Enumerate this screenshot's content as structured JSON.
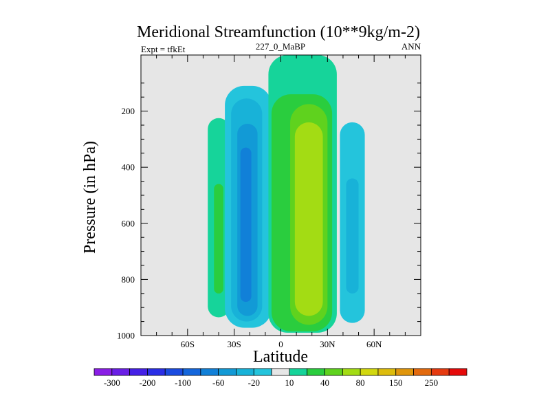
{
  "chart_data": {
    "type": "heatmap",
    "title": "Meridional Streamfunction (10**9kg/m-2)",
    "subtitle_left": "Expt = tfkEt",
    "subtitle_center": "227_0_MaBP",
    "subtitle_right": "ANN",
    "xlabel": "Latitude",
    "ylabel": "Pressure (in hPa)",
    "xlim": [
      -90,
      90
    ],
    "ylim": [
      0,
      1000
    ],
    "y_reversed": true,
    "x_ticks": [
      {
        "value": -60,
        "label": "60S"
      },
      {
        "value": -30,
        "label": "30S"
      },
      {
        "value": 0,
        "label": "0"
      },
      {
        "value": 30,
        "label": "30N"
      },
      {
        "value": 60,
        "label": "60N"
      }
    ],
    "y_ticks": [
      {
        "value": 200,
        "label": "200"
      },
      {
        "value": 400,
        "label": "400"
      },
      {
        "value": 600,
        "label": "600"
      },
      {
        "value": 800,
        "label": "800"
      },
      {
        "value": 1000,
        "label": "1000"
      }
    ],
    "background_color": "#e6e6e6",
    "colorbar": {
      "levels": [
        -300,
        -250,
        -200,
        -150,
        -100,
        -80,
        -60,
        -40,
        -20,
        -10,
        10,
        20,
        40,
        60,
        80,
        100,
        150,
        200,
        250,
        300
      ],
      "colors": [
        "#8a1ee6",
        "#6a1fe6",
        "#4520e6",
        "#2a2ee6",
        "#1a4be0",
        "#1466dc",
        "#1180d8",
        "#129ad6",
        "#18b2d8",
        "#24c4dc",
        "#e6e6e6",
        "#16d49a",
        "#2acd3e",
        "#5fd21e",
        "#a3dc14",
        "#d2d80f",
        "#ddbc0c",
        "#e0960c",
        "#e36a0e",
        "#e63a10",
        "#e60a0a"
      ],
      "labels": [
        {
          "level": -300,
          "text": "-300"
        },
        {
          "level": -200,
          "text": "-200"
        },
        {
          "level": -100,
          "text": "-100"
        },
        {
          "level": -60,
          "text": "-60"
        },
        {
          "level": -20,
          "text": "-20"
        },
        {
          "level": 10,
          "text": "10"
        },
        {
          "level": 40,
          "text": "40"
        },
        {
          "level": 80,
          "text": "80"
        },
        {
          "level": 150,
          "text": "150"
        },
        {
          "level": 250,
          "text": "250"
        }
      ]
    },
    "cells": [
      {
        "name": "cell-45s-positive",
        "center_lat": -40,
        "bands": [
          {
            "bin": 11,
            "lat": [
              -47,
              -33
            ],
            "p": [
              225,
              935
            ]
          },
          {
            "bin": 12,
            "lat": [
              -43,
              -37
            ],
            "p": [
              460,
              850
            ]
          }
        ]
      },
      {
        "name": "cell-20s-negative",
        "center_lat": -21,
        "bands": [
          {
            "bin": 9,
            "lat": [
              -36,
              -6
            ],
            "p": [
              110,
              972
            ]
          },
          {
            "bin": 8,
            "lat": [
              -32,
              -12
            ],
            "p": [
              155,
              950
            ]
          },
          {
            "bin": 7,
            "lat": [
              -28,
              -15
            ],
            "p": [
              245,
              930
            ]
          },
          {
            "bin": 6,
            "lat": [
              -26,
              -19
            ],
            "p": [
              330,
              880
            ]
          }
        ]
      },
      {
        "name": "cell-equatorial-positive",
        "center_lat": 13,
        "bands": [
          {
            "bin": 11,
            "lat": [
              -8,
              36
            ],
            "p": [
              0,
              990
            ]
          },
          {
            "bin": 12,
            "lat": [
              -6,
              33
            ],
            "p": [
              140,
              985
            ]
          },
          {
            "bin": 13,
            "lat": [
              6,
              30
            ],
            "p": [
              175,
              962
            ]
          },
          {
            "bin": 14,
            "lat": [
              9,
              27
            ],
            "p": [
              240,
              930
            ]
          }
        ]
      },
      {
        "name": "cell-45n-negative",
        "center_lat": 46,
        "bands": [
          {
            "bin": 9,
            "lat": [
              38,
              54
            ],
            "p": [
              240,
              955
            ]
          },
          {
            "bin": 8,
            "lat": [
              42,
              50
            ],
            "p": [
              440,
              850
            ]
          }
        ]
      }
    ]
  }
}
